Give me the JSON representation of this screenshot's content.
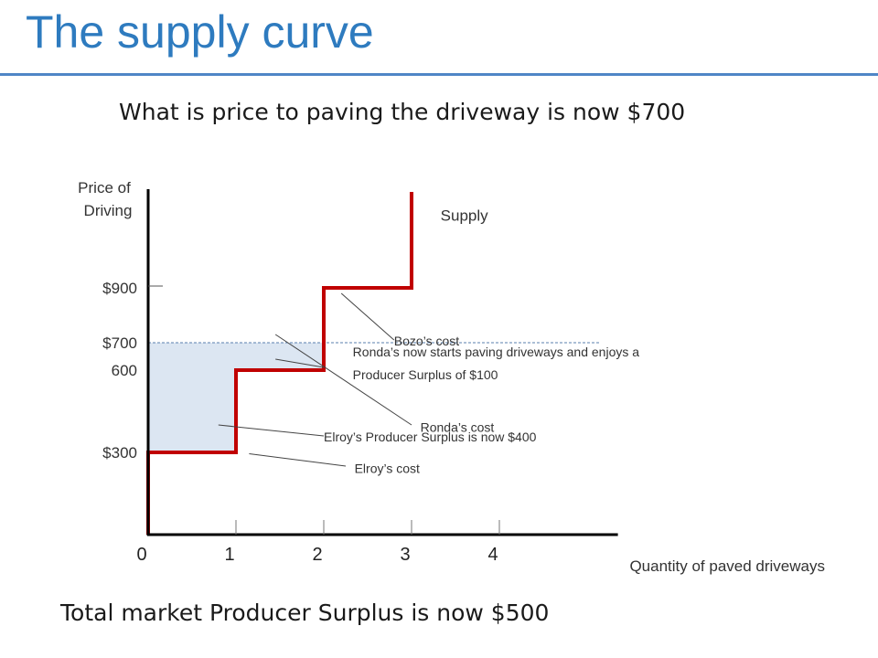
{
  "page": {
    "title": "The supply curve",
    "subtitle": "What is price to paving the driveway is  now $700",
    "footer": "Total market Producer Surplus is now $500",
    "accent_color": "#2e7bbf"
  },
  "chart_data": {
    "type": "line",
    "ylabel_lines": [
      "Price of",
      "Driving"
    ],
    "xlabel": "Quantity of paved driveways",
    "series": [
      {
        "name": "Supply",
        "step_points": [
          [
            0,
            0
          ],
          [
            0,
            300
          ],
          [
            1,
            300
          ],
          [
            1,
            600
          ],
          [
            2,
            600
          ],
          [
            2,
            900
          ],
          [
            3,
            900
          ],
          [
            3,
            1250
          ]
        ],
        "color": "#c00000"
      }
    ],
    "price_line": 700,
    "surplus_fill_color": "#dce6f2",
    "x_ticks": [
      {
        "value": 0,
        "label": "0"
      },
      {
        "value": 1,
        "label": "1"
      },
      {
        "value": 2,
        "label": "2"
      },
      {
        "value": 3,
        "label": "3"
      },
      {
        "value": 4,
        "label": "4"
      }
    ],
    "y_ticks": [
      {
        "value": 300,
        "label": "$300"
      },
      {
        "value": 600,
        "label": "600"
      },
      {
        "value": 700,
        "label": "$700"
      },
      {
        "value": 900,
        "label": "$900"
      }
    ],
    "xlim": [
      0,
      5.4
    ],
    "ylim": [
      0,
      1400
    ],
    "annotations": [
      {
        "name": "bozos-cost",
        "text": "Bozo’s cost",
        "target": [
          2.2,
          880
        ],
        "line_end": [
          2.8,
          710
        ],
        "text_pos": [
          2.8,
          690
        ]
      },
      {
        "name": "rondas-surplus",
        "lines": [
          "Ronda’s now starts paving driveways and enjoys a",
          "Producer Surplus of $100"
        ],
        "target": [
          2.0,
          610
        ],
        "text_pos": [
          2.33,
          650
        ]
      },
      {
        "name": "rondas-cost",
        "text": "Ronda’s cost",
        "target": [
          1.45,
          730
        ],
        "line_end": [
          3.0,
          400
        ],
        "text_pos": [
          3.1,
          375
        ]
      },
      {
        "name": "elroys-surplus",
        "text": "Elroy’s Producer Surplus is now $400",
        "target": [
          0.8,
          400
        ],
        "line_end": [
          2.0,
          360
        ],
        "text_pos": [
          2.0,
          340
        ]
      },
      {
        "name": "elroys-cost",
        "text": "Elroy’s cost",
        "target": [
          1.15,
          295
        ],
        "line_end": [
          2.25,
          250
        ],
        "text_pos": [
          2.35,
          225
        ]
      }
    ],
    "series_label": "Supply"
  }
}
